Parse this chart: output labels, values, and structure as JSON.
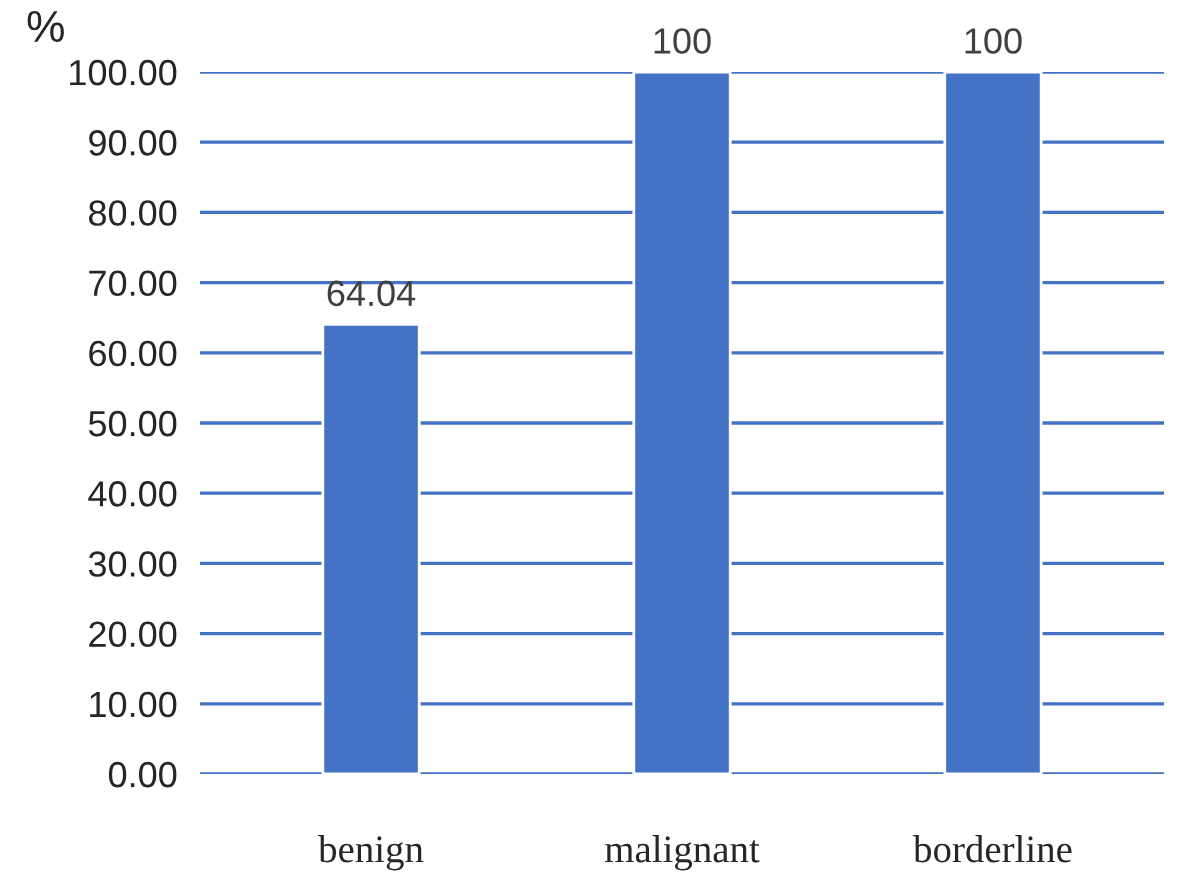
{
  "chart_data": {
    "type": "bar",
    "ylabel": "%",
    "categories": [
      "benign",
      "malignant",
      "borderline"
    ],
    "values": [
      64.04,
      100,
      100
    ],
    "color": "#4472c4",
    "value_labels": [
      "64.04",
      "100",
      "100"
    ],
    "ylim": [
      0,
      100
    ],
    "yticks": [
      {
        "value": 0,
        "label": "0.00"
      },
      {
        "value": 10,
        "label": "10.00"
      },
      {
        "value": 20,
        "label": "20.00"
      },
      {
        "value": 30,
        "label": "30.00"
      },
      {
        "value": 40,
        "label": "40.00"
      },
      {
        "value": 50,
        "label": "50.00"
      },
      {
        "value": 60,
        "label": "60.00"
      },
      {
        "value": 70,
        "label": "70.00"
      },
      {
        "value": 80,
        "label": "80.00"
      },
      {
        "value": 90,
        "label": "90.00"
      },
      {
        "value": 100,
        "label": "100.00"
      }
    ],
    "grid": "y",
    "legend": false
  }
}
